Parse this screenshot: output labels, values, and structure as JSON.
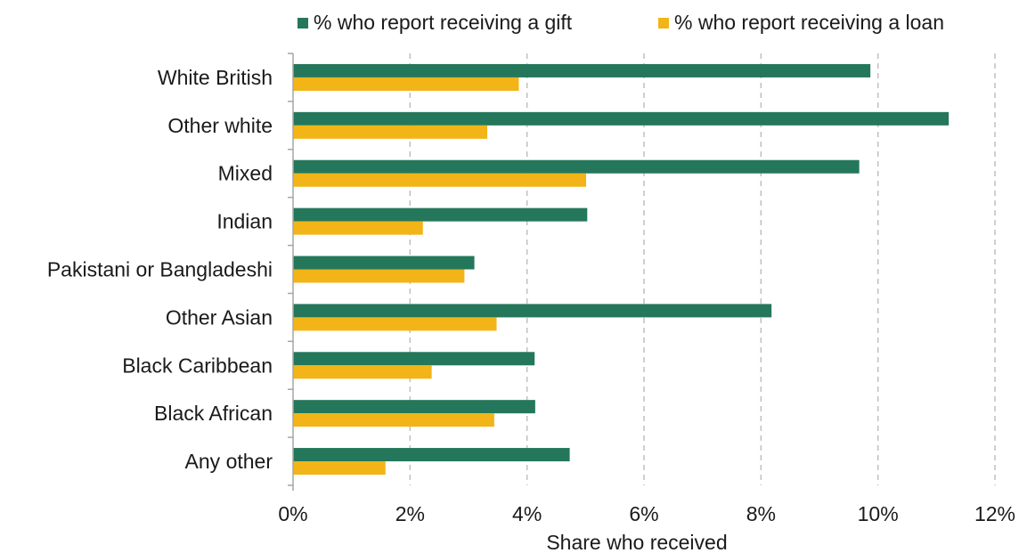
{
  "chart_data": {
    "type": "bar",
    "orientation": "horizontal",
    "categories": [
      "White British",
      "Other white",
      "Mixed",
      "Indian",
      "Pakistani or Bangladeshi",
      "Other Asian",
      "Black Caribbean",
      "Black African",
      "Any other"
    ],
    "series": [
      {
        "name": "% who report receiving a gift",
        "color": "#24775a",
        "values": [
          9.87,
          11.21,
          9.68,
          5.03,
          3.1,
          8.18,
          4.13,
          4.14,
          4.73
        ]
      },
      {
        "name": "% who report receiving a loan",
        "color": "#f2b417",
        "values": [
          3.86,
          3.32,
          5.01,
          2.22,
          2.93,
          3.48,
          2.37,
          3.44,
          1.58
        ]
      }
    ],
    "xlabel": "Share who received",
    "xlim": [
      0,
      12
    ],
    "xticks": [
      0,
      2,
      4,
      6,
      8,
      10,
      12
    ],
    "xtick_labels": [
      "0%",
      "2%",
      "4%",
      "6%",
      "8%",
      "10%",
      "12%"
    ],
    "grid": "vertical dashed",
    "legend_position": "top"
  }
}
